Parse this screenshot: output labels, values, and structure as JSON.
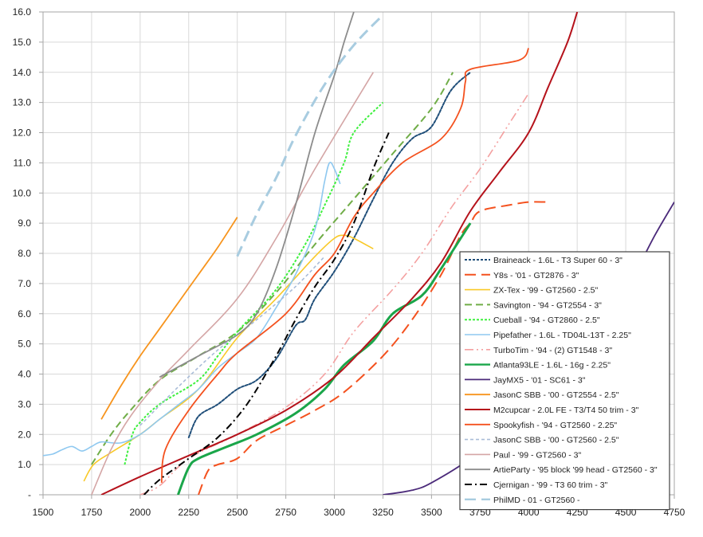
{
  "chart_data": {
    "type": "line",
    "title": "",
    "xlabel": "",
    "ylabel": "",
    "xlim": [
      1500,
      4750
    ],
    "ylim": [
      0,
      16
    ],
    "x_ticks": [
      1500,
      1750,
      2000,
      2250,
      2500,
      2750,
      3000,
      3250,
      3500,
      3750,
      4000,
      4250,
      4500,
      4750
    ],
    "x_tick_labels": [
      "1500",
      "1750",
      "2000",
      "2250",
      "2500",
      "2750",
      "3000",
      "3250",
      "3500",
      "3750",
      "4000",
      "4250",
      "4500",
      "4750"
    ],
    "y_ticks": [
      0,
      1,
      2,
      3,
      4,
      5,
      6,
      7,
      8,
      9,
      10,
      11,
      12,
      13,
      14,
      15,
      16
    ],
    "y_tick_labels": [
      "-",
      "1.0",
      "2.0",
      "3.0",
      "4.0",
      "5.0",
      "6.0",
      "7.0",
      "8.0",
      "9.0",
      "10.0",
      "11.0",
      "12.0",
      "13.0",
      "14.0",
      "15.0",
      "16.0"
    ],
    "grid": true,
    "legend_position": "bottom-right",
    "series": [
      {
        "name": "Braineack - 1.6L - T3 Super 60 - 3\"",
        "color": "#1f4e79",
        "dash": "round-dot",
        "width": 2,
        "points": [
          [
            2250,
            1.9
          ],
          [
            2300,
            2.6
          ],
          [
            2400,
            3.0
          ],
          [
            2500,
            3.5
          ],
          [
            2600,
            3.8
          ],
          [
            2700,
            4.5
          ],
          [
            2800,
            5.6
          ],
          [
            2850,
            5.8
          ],
          [
            2900,
            6.5
          ],
          [
            3000,
            7.4
          ],
          [
            3100,
            8.5
          ],
          [
            3200,
            9.8
          ],
          [
            3300,
            11.0
          ],
          [
            3400,
            11.8
          ],
          [
            3500,
            12.2
          ],
          [
            3600,
            13.4
          ],
          [
            3700,
            14.0
          ]
        ]
      },
      {
        "name": "Y8s - '01 - GT2876 - 3\"",
        "color": "#f4511e",
        "dash": "long-dash",
        "width": 2,
        "points": [
          [
            2300,
            0
          ],
          [
            2350,
            0.8
          ],
          [
            2400,
            1.0
          ],
          [
            2500,
            1.2
          ],
          [
            2600,
            1.8
          ],
          [
            2750,
            2.3
          ],
          [
            2900,
            2.8
          ],
          [
            3050,
            3.4
          ],
          [
            3250,
            4.6
          ],
          [
            3400,
            5.8
          ],
          [
            3550,
            7.3
          ],
          [
            3650,
            8.6
          ],
          [
            3700,
            9.0
          ],
          [
            3750,
            9.4
          ],
          [
            3900,
            9.6
          ],
          [
            4000,
            9.7
          ],
          [
            4100,
            9.7
          ]
        ]
      },
      {
        "name": "ZX-Tex - '99 - GT2560 - 2.5\"",
        "color": "#f9c928",
        "dash": "solid",
        "width": 1.6,
        "points": [
          [
            1710,
            0.45
          ],
          [
            1760,
            1.0
          ],
          [
            1850,
            1.4
          ],
          [
            2000,
            2.0
          ],
          [
            2100,
            2.5
          ],
          [
            2300,
            3.5
          ],
          [
            2500,
            5.2
          ],
          [
            2700,
            6.5
          ],
          [
            2900,
            7.9
          ],
          [
            3000,
            8.5
          ],
          [
            3050,
            8.6
          ],
          [
            3100,
            8.5
          ],
          [
            3200,
            8.15
          ]
        ]
      },
      {
        "name": "Savington - '94 - GT2554 - 3\"",
        "color": "#70ad47",
        "dash": "dash",
        "width": 2,
        "points": [
          [
            1750,
            1.0
          ],
          [
            1850,
            2.0
          ],
          [
            1950,
            2.8
          ],
          [
            2100,
            3.8
          ],
          [
            2300,
            4.6
          ],
          [
            2500,
            5.4
          ],
          [
            2700,
            6.7
          ],
          [
            2900,
            8.3
          ],
          [
            3100,
            9.8
          ],
          [
            3300,
            11.3
          ],
          [
            3500,
            12.8
          ],
          [
            3610,
            14.0
          ]
        ]
      },
      {
        "name": "Cueball - '94 - GT2860 - 2.5\"",
        "color": "#3ef03e",
        "dash": "square-dot",
        "width": 2,
        "points": [
          [
            1920,
            1.0
          ],
          [
            1960,
            2.0
          ],
          [
            2000,
            2.4
          ],
          [
            2100,
            3.0
          ],
          [
            2300,
            3.8
          ],
          [
            2400,
            4.6
          ],
          [
            2500,
            5.4
          ],
          [
            2700,
            6.8
          ],
          [
            2850,
            8.3
          ],
          [
            2950,
            9.6
          ],
          [
            3050,
            11.0
          ],
          [
            3100,
            12.0
          ],
          [
            3250,
            13.0
          ]
        ]
      },
      {
        "name": "Pipefather - 1.6L - TD04L-13T - 2.25\"",
        "color": "#8ec8f0",
        "dash": "solid",
        "width": 1.6,
        "points": [
          [
            1500,
            1.3
          ],
          [
            1550,
            1.35
          ],
          [
            1600,
            1.5
          ],
          [
            1650,
            1.6
          ],
          [
            1700,
            1.45
          ],
          [
            1750,
            1.6
          ],
          [
            1800,
            1.75
          ],
          [
            1900,
            1.72
          ],
          [
            2000,
            2.0
          ],
          [
            2100,
            2.5
          ],
          [
            2200,
            3.0
          ],
          [
            2300,
            3.5
          ],
          [
            2400,
            4.2
          ],
          [
            2500,
            4.7
          ],
          [
            2600,
            5.2
          ],
          [
            2700,
            6.2
          ],
          [
            2800,
            7.3
          ],
          [
            2900,
            8.8
          ],
          [
            2950,
            10.4
          ],
          [
            2975,
            11.0
          ],
          [
            3000,
            10.8
          ],
          [
            3030,
            10.3
          ]
        ]
      },
      {
        "name": "TurboTim - '94 - (2) GT1548 - 3\"",
        "color": "#f4a0a0",
        "dash": "long-dash-dot-dot",
        "width": 1.6,
        "points": [
          [
            2000,
            0
          ],
          [
            2100,
            0.3
          ],
          [
            2250,
            1.2
          ],
          [
            2500,
            2.0
          ],
          [
            2750,
            2.9
          ],
          [
            2950,
            4.0
          ],
          [
            3100,
            5.4
          ],
          [
            3300,
            6.8
          ],
          [
            3450,
            8.0
          ],
          [
            3600,
            9.5
          ],
          [
            3750,
            10.8
          ],
          [
            3900,
            12.3
          ],
          [
            4000,
            13.3
          ]
        ]
      },
      {
        "name": "Atlanta93LE - 1.6L - 16g - 2.25\"",
        "color": "#1aa64a",
        "dash": "solid",
        "width": 3,
        "points": [
          [
            2195,
            0
          ],
          [
            2250,
            0.9
          ],
          [
            2300,
            1.2
          ],
          [
            2450,
            1.6
          ],
          [
            2600,
            2.0
          ],
          [
            2800,
            2.7
          ],
          [
            2950,
            3.5
          ],
          [
            3050,
            4.3
          ],
          [
            3200,
            5.1
          ],
          [
            3300,
            6.0
          ],
          [
            3450,
            6.6
          ],
          [
            3550,
            7.5
          ],
          [
            3700,
            9.0
          ]
        ]
      },
      {
        "name": "JayMX5 - '01 - SC61 - 3\"",
        "color": "#4b2a7a",
        "dash": "solid",
        "width": 1.8,
        "points": [
          [
            3250,
            0
          ],
          [
            3400,
            0.15
          ],
          [
            3500,
            0.4
          ],
          [
            3700,
            1.2
          ],
          [
            3900,
            2.3
          ],
          [
            4100,
            3.6
          ],
          [
            4300,
            5.0
          ],
          [
            4500,
            6.8
          ],
          [
            4650,
            8.6
          ],
          [
            4750,
            9.7
          ]
        ]
      },
      {
        "name": "JasonC SBB - '00 - GT2554 - 2.5\"",
        "color": "#f7941d",
        "dash": "solid",
        "width": 1.8,
        "points": [
          [
            1800,
            2.5
          ],
          [
            1900,
            3.6
          ],
          [
            2000,
            4.6
          ],
          [
            2100,
            5.5
          ],
          [
            2200,
            6.4
          ],
          [
            2300,
            7.3
          ],
          [
            2400,
            8.2
          ],
          [
            2500,
            9.2
          ]
        ]
      },
      {
        "name": "M2cupcar - 2.0L FE - T3/T4 50 trim - 3\"",
        "color": "#b5121b",
        "dash": "solid",
        "width": 2,
        "points": [
          [
            1800,
            0
          ],
          [
            2000,
            0.6
          ],
          [
            2250,
            1.3
          ],
          [
            2500,
            2.0
          ],
          [
            2750,
            2.8
          ],
          [
            3000,
            3.9
          ],
          [
            3200,
            5.2
          ],
          [
            3400,
            6.5
          ],
          [
            3550,
            7.7
          ],
          [
            3700,
            9.4
          ],
          [
            3850,
            10.7
          ],
          [
            4000,
            12.0
          ],
          [
            4100,
            13.5
          ],
          [
            4200,
            15.0
          ],
          [
            4250,
            16.0
          ]
        ]
      },
      {
        "name": "Spookyfish  - '94 - GT2560 - 2.25\"",
        "color": "#f4511e",
        "dash": "solid",
        "width": 1.8,
        "points": [
          [
            2110,
            0.4
          ],
          [
            2130,
            1.5
          ],
          [
            2250,
            2.8
          ],
          [
            2400,
            4.0
          ],
          [
            2500,
            4.7
          ],
          [
            2750,
            6.0
          ],
          [
            2900,
            7.3
          ],
          [
            3000,
            8.0
          ],
          [
            3100,
            9.2
          ],
          [
            3200,
            10.0
          ],
          [
            3350,
            11.0
          ],
          [
            3550,
            11.8
          ],
          [
            3650,
            12.8
          ],
          [
            3675,
            13.7
          ],
          [
            3700,
            14.1
          ],
          [
            3950,
            14.4
          ],
          [
            4000,
            14.8
          ]
        ]
      },
      {
        "name": "JasonC SBB - '00 - GT2560 - 2.5\"",
        "color": "#a9bcd8",
        "dash": "dash-small",
        "width": 1.6,
        "points": [
          [
            2000,
            2.3
          ],
          [
            2200,
            3.6
          ],
          [
            2400,
            4.8
          ],
          [
            2600,
            5.8
          ],
          [
            2800,
            6.9
          ],
          [
            2950,
            7.9
          ]
        ]
      },
      {
        "name": "Paul - '99 - GT2560 - 3\"",
        "color": "#d4a5a5",
        "dash": "solid",
        "width": 1.6,
        "points": [
          [
            1750,
            0
          ],
          [
            1850,
            1.5
          ],
          [
            1950,
            2.6
          ],
          [
            2100,
            3.8
          ],
          [
            2250,
            4.8
          ],
          [
            2500,
            6.5
          ],
          [
            2700,
            8.5
          ],
          [
            2900,
            10.8
          ],
          [
            3200,
            14.0
          ]
        ]
      },
      {
        "name": "ArtieParty - '95 block '99 head - GT2560 - 3\"",
        "color": "#8c8c8c",
        "dash": "solid",
        "width": 1.8,
        "points": [
          [
            2100,
            3.9
          ],
          [
            2300,
            4.6
          ],
          [
            2500,
            5.3
          ],
          [
            2600,
            6.0
          ],
          [
            2700,
            7.5
          ],
          [
            2800,
            9.6
          ],
          [
            2900,
            12.0
          ],
          [
            3000,
            13.9
          ],
          [
            3050,
            15.0
          ],
          [
            3100,
            16.0
          ]
        ]
      },
      {
        "name": "Cjernigan - '99 - T3 60 trim - 3\"",
        "color": "#000000",
        "dash": "dash-dot",
        "width": 2,
        "points": [
          [
            2020,
            0
          ],
          [
            2100,
            0.5
          ],
          [
            2250,
            1.2
          ],
          [
            2400,
            1.9
          ],
          [
            2550,
            3.0
          ],
          [
            2700,
            4.6
          ],
          [
            2800,
            5.8
          ],
          [
            2900,
            6.9
          ],
          [
            3000,
            7.8
          ],
          [
            3100,
            9.0
          ],
          [
            3200,
            10.8
          ],
          [
            3280,
            12.0
          ]
        ]
      },
      {
        "name": "PhilMD - 01 - GT2560 -",
        "color": "#a8cce0",
        "dash": "long-dash",
        "width": 3,
        "points": [
          [
            2500,
            7.9
          ],
          [
            2600,
            9.3
          ],
          [
            2700,
            10.5
          ],
          [
            2800,
            11.9
          ],
          [
            2950,
            13.6
          ],
          [
            3100,
            14.9
          ],
          [
            3250,
            15.9
          ]
        ]
      }
    ]
  }
}
